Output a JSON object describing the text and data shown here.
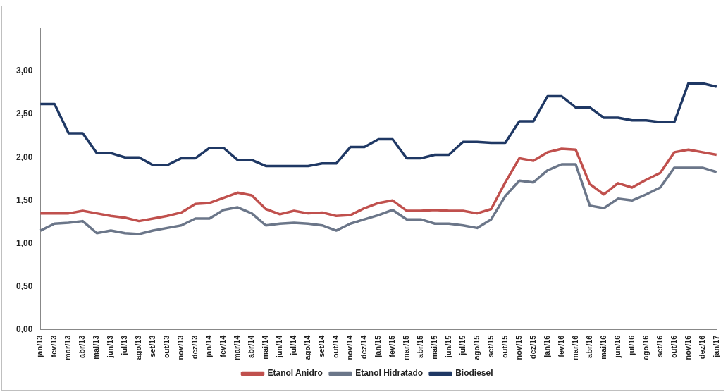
{
  "chart_data": {
    "type": "line",
    "categories": [
      "jan/13",
      "fev/13",
      "mar/13",
      "abr/13",
      "mai/13",
      "jun/13",
      "jul/13",
      "ago/13",
      "set/13",
      "out/13",
      "nov/13",
      "dez/13",
      "jan/14",
      "fev/14",
      "mar/14",
      "abr/14",
      "mai/14",
      "jun/14",
      "jul/14",
      "ago/14",
      "set/14",
      "out/14",
      "nov/14",
      "dez/14",
      "jan/15",
      "fev/15",
      "mar/15",
      "abr/15",
      "mai/15",
      "jun/15",
      "jul/15",
      "ago/15",
      "set/15",
      "out/15",
      "nov/15",
      "dez/15",
      "jan/16",
      "fev/16",
      "mar/16",
      "abr/16",
      "mai/16",
      "jun/16",
      "jul/16",
      "ago/16",
      "set/16",
      "out/16",
      "nov/16",
      "dez/16",
      "jan/17"
    ],
    "series": [
      {
        "name": "Etanol Anidro",
        "color": "#c0504d",
        "values": [
          1.35,
          1.35,
          1.35,
          1.38,
          1.35,
          1.32,
          1.3,
          1.26,
          1.29,
          1.32,
          1.36,
          1.46,
          1.47,
          1.53,
          1.59,
          1.56,
          1.4,
          1.34,
          1.38,
          1.35,
          1.36,
          1.32,
          1.33,
          1.41,
          1.47,
          1.5,
          1.38,
          1.38,
          1.39,
          1.38,
          1.38,
          1.35,
          1.4,
          1.71,
          1.99,
          1.96,
          2.06,
          2.1,
          2.09,
          1.69,
          1.57,
          1.7,
          1.65,
          1.74,
          1.82,
          2.06,
          2.09,
          2.06,
          2.03
        ]
      },
      {
        "name": "Etanol Hidratado",
        "color": "#6b7689",
        "values": [
          1.15,
          1.23,
          1.24,
          1.26,
          1.12,
          1.15,
          1.12,
          1.11,
          1.15,
          1.18,
          1.21,
          1.29,
          1.29,
          1.39,
          1.42,
          1.35,
          1.21,
          1.23,
          1.24,
          1.23,
          1.21,
          1.15,
          1.23,
          1.28,
          1.33,
          1.39,
          1.28,
          1.28,
          1.23,
          1.23,
          1.21,
          1.18,
          1.28,
          1.55,
          1.73,
          1.71,
          1.85,
          1.92,
          1.92,
          1.44,
          1.41,
          1.52,
          1.5,
          1.57,
          1.65,
          1.88,
          1.88,
          1.88,
          1.83
        ]
      },
      {
        "name": "Biodiesel",
        "color": "#1f3864",
        "values": [
          2.62,
          2.62,
          2.28,
          2.28,
          2.05,
          2.05,
          2.0,
          2.0,
          1.91,
          1.91,
          1.99,
          1.99,
          2.11,
          2.11,
          1.97,
          1.97,
          1.9,
          1.9,
          1.9,
          1.9,
          1.93,
          1.93,
          2.12,
          2.12,
          2.21,
          2.21,
          1.99,
          1.99,
          2.03,
          2.03,
          2.18,
          2.18,
          2.17,
          2.17,
          2.42,
          2.42,
          2.71,
          2.71,
          2.58,
          2.58,
          2.46,
          2.46,
          2.43,
          2.43,
          2.41,
          2.41,
          2.86,
          2.86,
          2.82
        ]
      }
    ],
    "ylim": [
      0,
      3.5
    ],
    "yticks": [
      {
        "value": 0,
        "label": "0,00"
      },
      {
        "value": 0.5,
        "label": "0,50"
      },
      {
        "value": 1,
        "label": "1,00"
      },
      {
        "value": 1.5,
        "label": "1,50"
      },
      {
        "value": 2,
        "label": "2,00"
      },
      {
        "value": 2.5,
        "label": "2,50"
      },
      {
        "value": 3,
        "label": "3,00"
      }
    ],
    "grid": false,
    "legend": "bottom",
    "marker": "none",
    "line_style": "solid"
  }
}
